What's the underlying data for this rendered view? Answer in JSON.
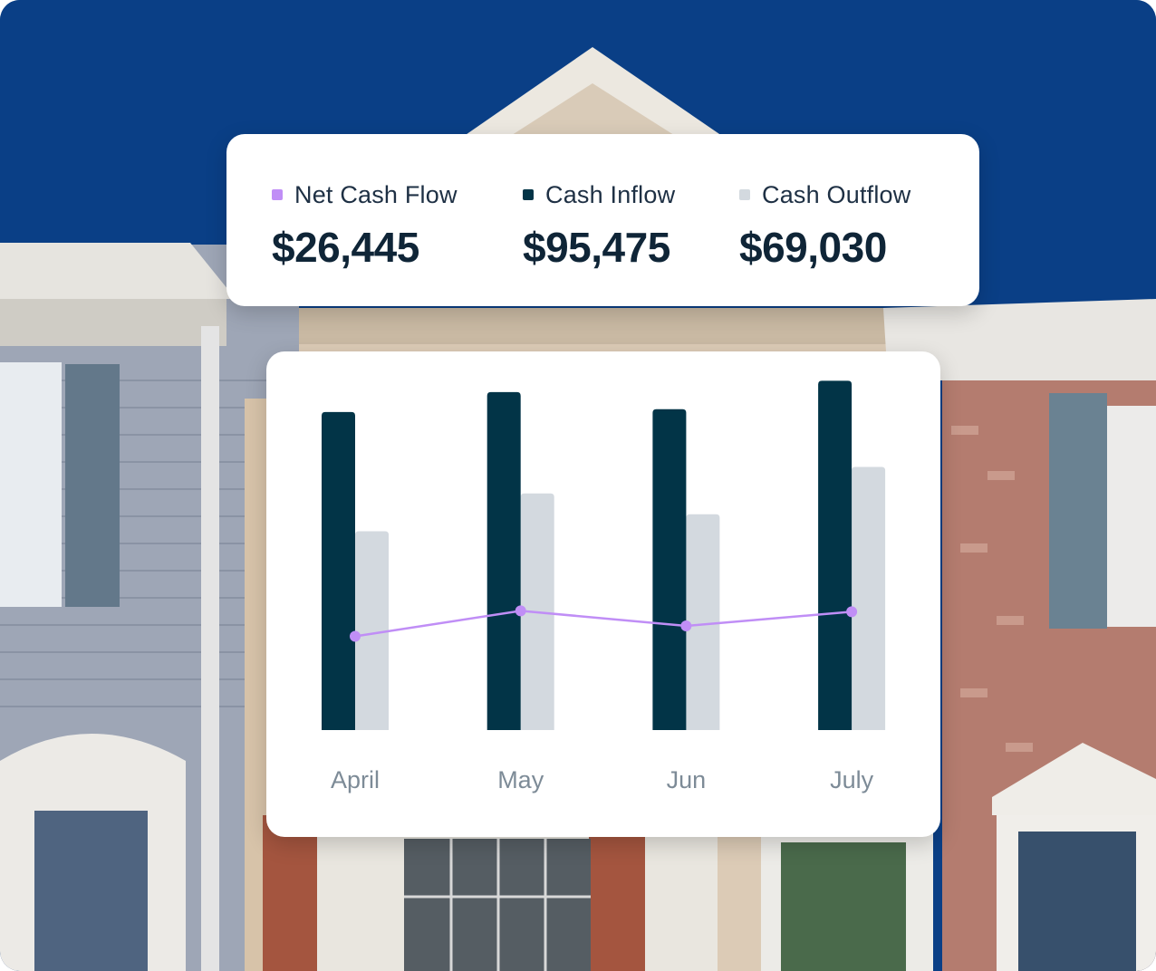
{
  "summary": {
    "net": {
      "label": "Net Cash Flow",
      "value": "$26,445",
      "color": "#c08ef6"
    },
    "inflow": {
      "label": "Cash Inflow",
      "value": "$95,475",
      "color": "#023447"
    },
    "outflow": {
      "label": "Cash Outflow",
      "value": "$69,030",
      "color": "#d3d9df"
    }
  },
  "chart_data": {
    "type": "bar",
    "categories": [
      "April",
      "May",
      "Jun",
      "July"
    ],
    "series": [
      {
        "name": "Cash Inflow",
        "type": "bar",
        "color": "#023447",
        "values": [
          336,
          357,
          339,
          369
        ]
      },
      {
        "name": "Cash Outflow",
        "type": "bar",
        "color": "#d3d9df",
        "values": [
          210,
          250,
          228,
          278
        ]
      },
      {
        "name": "Net Cash Flow",
        "type": "line",
        "color": "#c08ef6",
        "values": [
          99,
          126,
          110,
          125
        ]
      }
    ],
    "ylim": [
      0,
      400
    ],
    "grid": false,
    "legend": "top"
  }
}
